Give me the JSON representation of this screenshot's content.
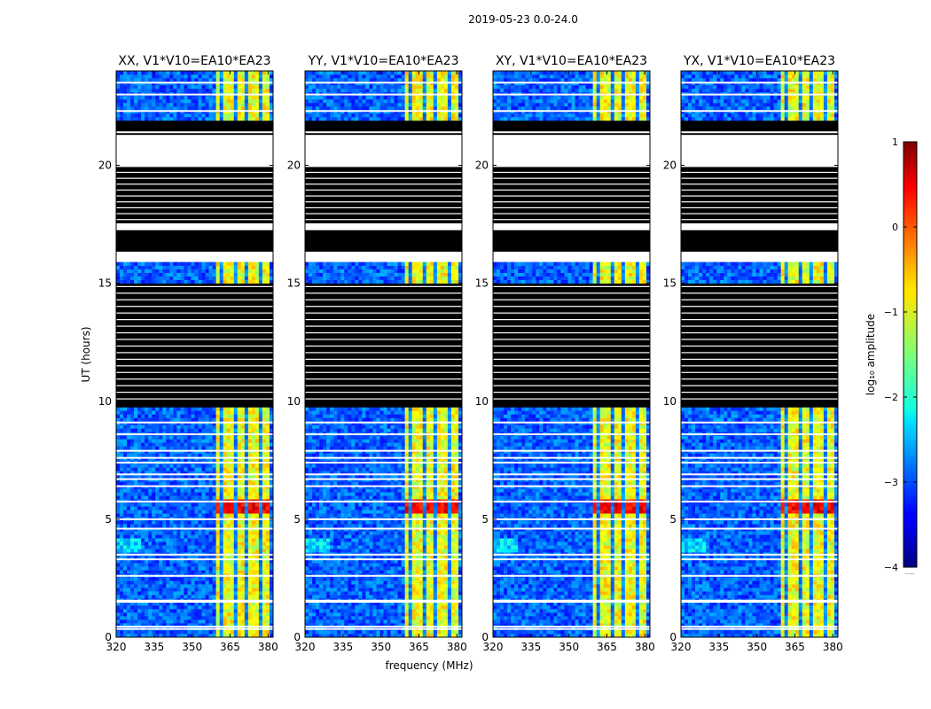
{
  "chart_data": {
    "type": "heatmap",
    "suptitle": "2019-05-23 0.0-24.0",
    "xlabel": "frequency (MHz)",
    "ylabel": "UT (hours)",
    "xlim": [
      320,
      382
    ],
    "ylim": [
      0,
      24
    ],
    "xticks": [
      320,
      335,
      350,
      365,
      380
    ],
    "yticks": [
      0,
      5,
      10,
      15,
      20
    ],
    "xtick_labels": [
      "320",
      "335",
      "350",
      "365",
      "380"
    ],
    "ytick_labels": [
      "0",
      "5",
      "10",
      "15",
      "20"
    ],
    "panels": [
      {
        "title": "XX, V1*V10=EA10*EA23"
      },
      {
        "title": "YY, V1*V10=EA10*EA23"
      },
      {
        "title": "XY, V1*V10=EA10*EA23"
      },
      {
        "title": "YX, V1*V10=EA10*EA23"
      }
    ],
    "colorbar": {
      "label": "log₁₀ amplitude",
      "range": [
        -4,
        1
      ],
      "ticks": [
        1,
        0,
        -1,
        -2,
        -3,
        -4
      ],
      "tick_labels": [
        "1",
        "0",
        "−1",
        "−2",
        "−3",
        "−4"
      ],
      "colormap": "jet",
      "under_text": "......"
    },
    "strong_band_mhz": [
      360,
      380
    ],
    "peak_ut_hours": [
      5.3,
      5.8
    ],
    "flagged_black_ut_ranges": [
      [
        9.8,
        15.0
      ],
      [
        16.3,
        17.2
      ],
      [
        17.5,
        20.0
      ],
      [
        21.3,
        21.9
      ]
    ],
    "missing_white_ut_ranges": [
      [
        15.9,
        16.3
      ],
      [
        17.2,
        17.5
      ],
      [
        20.0,
        21.0
      ]
    ]
  }
}
